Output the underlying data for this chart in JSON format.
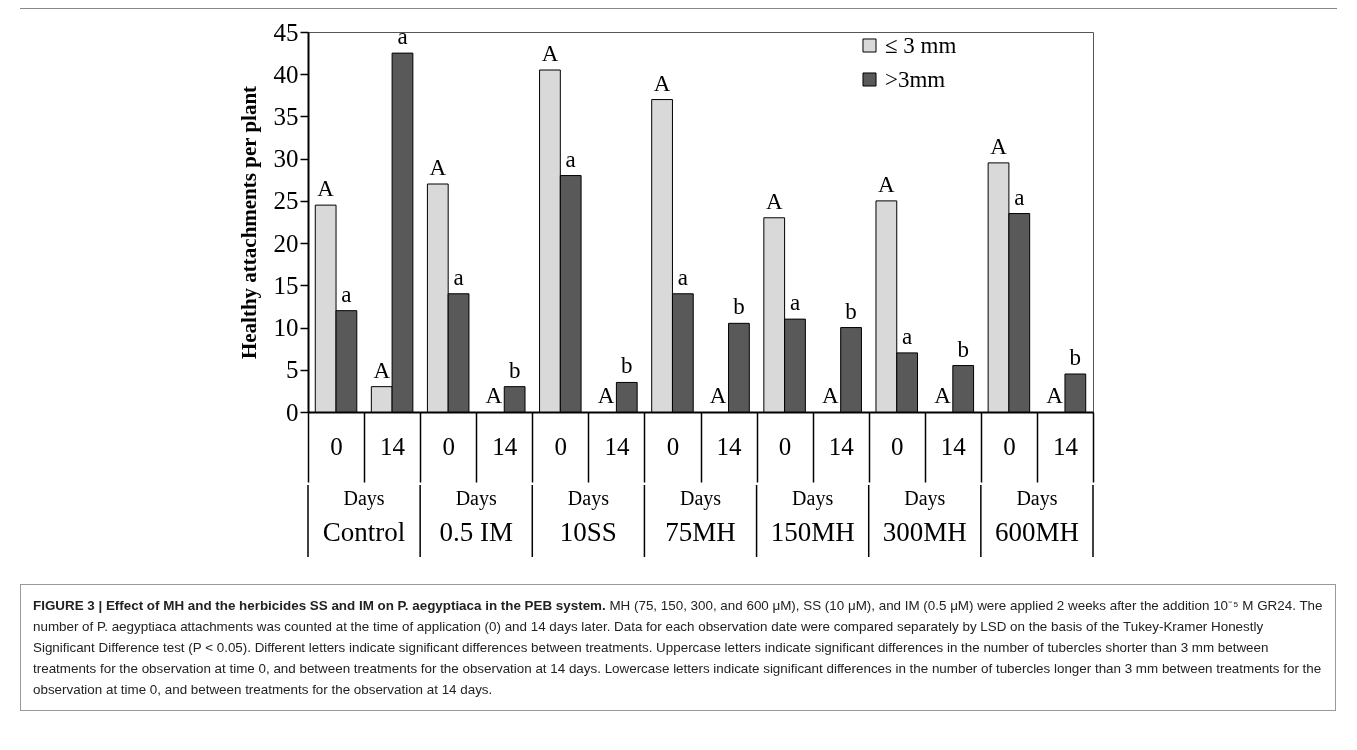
{
  "chart_data": {
    "type": "bar",
    "title": "FIGURE 3 | Effect of MH and the herbicides SS and IM on P. aegyptiaca in the PEB system.",
    "ylabel": "Healthy attachments per plant",
    "categories": [
      "0",
      "14",
      "0",
      "14",
      "0",
      "14",
      "0",
      "14",
      "0",
      "14",
      "0",
      "14",
      "0",
      "14"
    ],
    "series": [
      {
        "name": "≤ 3 mm",
        "color": "#d9d9d9",
        "values": [
          24.5,
          3,
          27,
          0,
          40.5,
          0,
          37,
          0,
          23,
          0,
          25,
          0,
          29.5,
          0
        ],
        "value_labels": [
          "A",
          "A",
          "A",
          "A",
          "A",
          "A",
          "A",
          "A",
          "A",
          "A",
          "A",
          "A",
          "A",
          "A"
        ]
      },
      {
        "name": ">3mm",
        "color": "#595959",
        "values": [
          12,
          42.5,
          14,
          3,
          28,
          3.5,
          14,
          10.5,
          11,
          10,
          7,
          5.5,
          23.5,
          4.5
        ],
        "value_labels": [
          "a",
          "a",
          "a",
          "b",
          "a",
          "b",
          "a",
          "b",
          "a",
          "b",
          "a",
          "b",
          "a",
          "b"
        ]
      }
    ],
    "ylim": [
      0,
      45
    ],
    "yticks": [
      0,
      5,
      10,
      15,
      20,
      25,
      30,
      35,
      40,
      45
    ],
    "legend": "top right",
    "annotations": [
      "Days",
      "Control",
      "Days",
      "0.5 IM",
      "Days",
      "10SS",
      "Days",
      "75MH",
      "Days",
      "150MH",
      "Days",
      "300MH",
      "Days",
      "600MH",
      "MH (75, 150, 300, and 600 μM), SS (10 μM), and IM (0.5 μM) were applied 2 weeks after the addition 10⁻⁵ M GR24. The number of P. aegyptiaca attachments was counted at the time of application (0) and 14 days later. Data for each observation date were compared separately by LSD on the basis of the Tukey-Kramer Honestly Significant Difference test (P < 0.05). Different letters indicate significant differences between treatments. Uppercase letters indicate significant differences in the number of tubercles shorter than 3 mm between treatments for the observation at time 0, and between treatments for the observation at 14 days. Lowercase letters indicate significant differences in the number of tubercles longer than 3 mm between treatments for the observation at time 0, and between treatments for the observation at 14 days."
    ]
  }
}
